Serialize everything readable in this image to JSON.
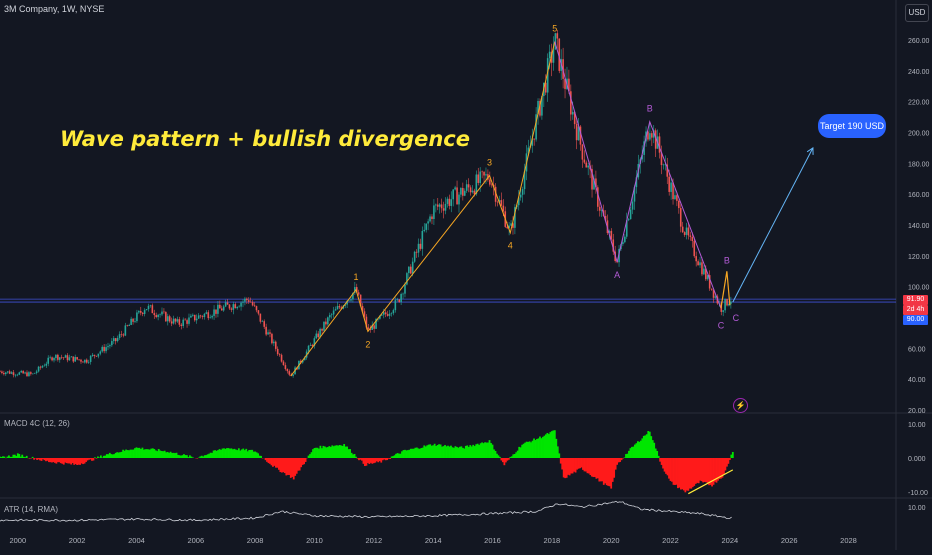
{
  "header": {
    "symbol": "3M Company, 1W, NYSE",
    "currency": "USD"
  },
  "annotations": {
    "headline": "Wave pattern + bullish divergence",
    "target": "Target 190 USD",
    "bolt_icon": "lightning-bolt-icon"
  },
  "price_labels": {
    "current": "91.90",
    "countdown": "2d 4h",
    "level": "90.00"
  },
  "indicators": {
    "macd": "MACD 4C (12, 26)",
    "atr": "ATR (14, RMA)"
  },
  "colors": {
    "background": "#131722",
    "candle_up": "#26a69a",
    "candle_down": "#ef5350",
    "wave_line": "#f5a623",
    "abc_line": "#b35bd6",
    "target_box": "#2962ff",
    "macd_up": "#00e600",
    "macd_down": "#ff1a1a",
    "hline": "#3f51d6"
  },
  "chart_data": {
    "type": "line",
    "x_ticks": [
      "2000",
      "2002",
      "2004",
      "2006",
      "2008",
      "2010",
      "2012",
      "2014",
      "2016",
      "2018",
      "2020",
      "2022",
      "2024",
      "2026",
      "2028"
    ],
    "price_axis": {
      "ticks": [
        "260.00",
        "240.00",
        "220.00",
        "200.00",
        "180.00",
        "160.00",
        "140.00",
        "120.00",
        "100.00",
        "80.00",
        "60.00",
        "40.00",
        "20.00"
      ],
      "ylim": [
        20,
        270
      ]
    },
    "price_path": [
      [
        1999.4,
        45
      ],
      [
        2000.5,
        43
      ],
      [
        2001.2,
        55
      ],
      [
        2002.3,
        52
      ],
      [
        2003.3,
        65
      ],
      [
        2004.3,
        87
      ],
      [
        2005.4,
        76
      ],
      [
        2006.3,
        82
      ],
      [
        2007.8,
        92
      ],
      [
        2009.2,
        42
      ],
      [
        2010.5,
        80
      ],
      [
        2011.4,
        98
      ],
      [
        2011.8,
        71
      ],
      [
        2012.8,
        90
      ],
      [
        2014,
        150
      ],
      [
        2015.9,
        172
      ],
      [
        2016.6,
        135
      ],
      [
        2017.5,
        210
      ],
      [
        2018.1,
        259
      ],
      [
        2019.0,
        190
      ],
      [
        2020.2,
        116
      ],
      [
        2021.3,
        207
      ],
      [
        2022.5,
        135
      ],
      [
        2023.7,
        86
      ],
      [
        2024.0,
        91.9
      ]
    ],
    "wave_labels": [
      {
        "label": "1",
        "x": 2011.4,
        "y": 98
      },
      {
        "label": "2",
        "x": 2011.8,
        "y": 71
      },
      {
        "label": "3",
        "x": 2015.9,
        "y": 172
      },
      {
        "label": "4",
        "x": 2016.6,
        "y": 135
      },
      {
        "label": "5",
        "x": 2018.1,
        "y": 259
      },
      {
        "label": "A",
        "x": 2020.2,
        "y": 116
      },
      {
        "label": "B",
        "x": 2021.3,
        "y": 207
      },
      {
        "label": "C",
        "x": 2023.7,
        "y": 86
      },
      {
        "label": "B",
        "x": 2023.9,
        "y": 110
      },
      {
        "label": "C",
        "x": 2024.0,
        "y": 88
      }
    ],
    "target_arrow": {
      "from": [
        2024.1,
        90
      ],
      "to": [
        2026.8,
        190
      ]
    },
    "h_lines": [
      91.9,
      90
    ],
    "macd_axis": {
      "ticks": [
        "10.00",
        "0.000",
        "-10.00"
      ],
      "ylim": [
        -13,
        13
      ]
    },
    "macd": {
      "x": [
        1999.4,
        2000,
        2001,
        2002,
        2003,
        2004,
        2005,
        2006,
        2007,
        2008,
        2008.7,
        2009.3,
        2010,
        2011,
        2011.7,
        2012.3,
        2013,
        2014,
        2015,
        2015.9,
        2016.4,
        2017,
        2017.6,
        2018.1,
        2018.4,
        2019,
        2020,
        2020.2,
        2020.7,
        2021.3,
        2021.7,
        2022,
        2022.5,
        2023,
        2023.4,
        2023.8,
        2024.1
      ],
      "values": [
        0,
        1,
        -1,
        -2,
        1,
        3,
        2,
        0,
        3,
        2,
        -3,
        -6,
        3,
        4,
        -2,
        -1,
        2,
        4,
        3,
        5,
        -2,
        4,
        6,
        8,
        -6,
        -3,
        -9,
        -2,
        3,
        8,
        -2,
        -7,
        -10,
        -7,
        -8,
        -5,
        2
      ]
    },
    "divergence_line": {
      "from": [
        2022.6,
        -10.5
      ],
      "to": [
        2024.1,
        -3.5
      ]
    },
    "atr_axis": {
      "ticks": [
        "10.00"
      ],
      "ylim": [
        0,
        13
      ]
    },
    "atr": {
      "x": [
        1999.4,
        2002,
        2004,
        2006,
        2008,
        2008.9,
        2010,
        2012,
        2014,
        2016,
        2017.5,
        2018.2,
        2019,
        2020.3,
        2021,
        2022,
        2023,
        2024
      ],
      "values": [
        4,
        4,
        4.5,
        4,
        5,
        8,
        6,
        5.5,
        6,
        7,
        8,
        11.5,
        10,
        12.5,
        9,
        8,
        7,
        5
      ]
    }
  }
}
